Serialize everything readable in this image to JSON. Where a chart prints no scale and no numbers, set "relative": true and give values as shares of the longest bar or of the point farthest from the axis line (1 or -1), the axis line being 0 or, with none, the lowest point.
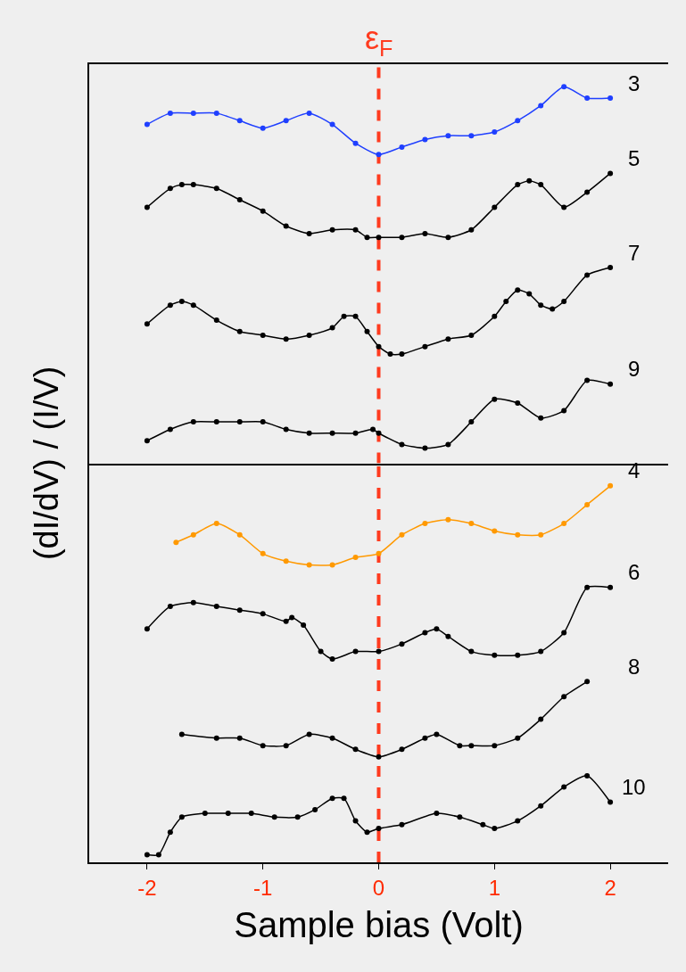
{
  "chart_data": [
    {
      "type": "line",
      "relative": true,
      "ylabel": "(dI/dV) / (I/V)",
      "xlim": [
        -2.5,
        2.5
      ],
      "xticks": [
        -2,
        -1,
        0,
        1,
        2
      ],
      "tick_labels": false,
      "marker": "circle",
      "line_style": "solid",
      "grid": false,
      "legend": false,
      "ref_lines": [
        {
          "axis": "x",
          "value": 0,
          "label": "ε$_{F}$",
          "color": "#ff3b1f",
          "line_style": "dashed"
        }
      ],
      "series": [
        {
          "name": "3",
          "color": "#1f3fff",
          "x": [
            -2,
            -1.8,
            -1.6,
            -1.4,
            -1.2,
            -1.0,
            -0.8,
            -0.6,
            -0.4,
            -0.2,
            0,
            0.2,
            0.4,
            0.6,
            0.8,
            1.0,
            1.2,
            1.4,
            1.6,
            1.8,
            2.0
          ],
          "values": [
            0.9,
            0.93,
            0.93,
            0.93,
            0.91,
            0.89,
            0.91,
            0.93,
            0.9,
            0.85,
            0.82,
            0.84,
            0.86,
            0.87,
            0.87,
            0.88,
            0.91,
            0.95,
            1.0,
            0.97,
            0.97
          ]
        },
        {
          "name": "5",
          "color": "#000000",
          "x": [
            -2,
            -1.8,
            -1.7,
            -1.6,
            -1.4,
            -1.2,
            -1.0,
            -0.8,
            -0.6,
            -0.4,
            -0.2,
            -0.1,
            0,
            0.2,
            0.4,
            0.6,
            0.8,
            1.0,
            1.2,
            1.3,
            1.4,
            1.6,
            1.8,
            2.0
          ],
          "values": [
            0.68,
            0.73,
            0.74,
            0.74,
            0.73,
            0.7,
            0.67,
            0.63,
            0.61,
            0.62,
            0.62,
            0.6,
            0.6,
            0.6,
            0.61,
            0.6,
            0.62,
            0.68,
            0.74,
            0.75,
            0.74,
            0.68,
            0.72,
            0.77
          ]
        },
        {
          "name": "7",
          "color": "#000000",
          "x": [
            -2,
            -1.8,
            -1.7,
            -1.6,
            -1.4,
            -1.2,
            -1.0,
            -0.8,
            -0.6,
            -0.4,
            -0.3,
            -0.2,
            -0.1,
            0,
            0.1,
            0.2,
            0.4,
            0.6,
            0.8,
            1.0,
            1.1,
            1.2,
            1.3,
            1.4,
            1.5,
            1.6,
            1.8,
            2.0
          ],
          "values": [
            0.37,
            0.42,
            0.43,
            0.42,
            0.38,
            0.35,
            0.34,
            0.33,
            0.34,
            0.36,
            0.39,
            0.39,
            0.35,
            0.31,
            0.29,
            0.29,
            0.31,
            0.33,
            0.34,
            0.39,
            0.43,
            0.46,
            0.45,
            0.42,
            0.41,
            0.43,
            0.5,
            0.52
          ]
        },
        {
          "name": "9",
          "color": "#000000",
          "x": [
            -2,
            -1.8,
            -1.6,
            -1.4,
            -1.2,
            -1.0,
            -0.8,
            -0.6,
            -0.4,
            -0.2,
            -0.05,
            0,
            0.2,
            0.4,
            0.6,
            0.8,
            1.0,
            1.2,
            1.4,
            1.6,
            1.8,
            2.0
          ],
          "values": [
            0.06,
            0.09,
            0.11,
            0.11,
            0.11,
            0.11,
            0.09,
            0.08,
            0.08,
            0.08,
            0.09,
            0.08,
            0.05,
            0.04,
            0.05,
            0.11,
            0.17,
            0.16,
            0.12,
            0.14,
            0.22,
            0.21
          ]
        }
      ]
    },
    {
      "type": "line",
      "relative": true,
      "xlabel": "Sample bias (Volt)",
      "xlim": [
        -2.5,
        2.5
      ],
      "xticks": [
        -2,
        -1,
        0,
        1,
        2
      ],
      "tick_labels": "x",
      "marker": "circle",
      "line_style": "solid",
      "grid": false,
      "legend": false,
      "ref_lines": [
        {
          "axis": "x",
          "value": 0,
          "color": "#ff3b1f",
          "line_style": "dashed"
        }
      ],
      "series": [
        {
          "name": "4",
          "color": "#ff9900",
          "x": [
            -1.75,
            -1.6,
            -1.4,
            -1.2,
            -1.0,
            -0.8,
            -0.6,
            -0.4,
            -0.2,
            0,
            0.2,
            0.4,
            0.6,
            0.8,
            1.0,
            1.2,
            1.4,
            1.6,
            1.8,
            2.0
          ],
          "values": [
            0.85,
            0.87,
            0.9,
            0.87,
            0.82,
            0.8,
            0.79,
            0.79,
            0.81,
            0.82,
            0.87,
            0.9,
            0.91,
            0.9,
            0.88,
            0.87,
            0.87,
            0.9,
            0.95,
            1.0
          ]
        },
        {
          "name": "6",
          "color": "#000000",
          "x": [
            -2,
            -1.8,
            -1.6,
            -1.4,
            -1.2,
            -1.0,
            -0.8,
            -0.75,
            -0.65,
            -0.5,
            -0.4,
            -0.2,
            0,
            0.2,
            0.4,
            0.5,
            0.6,
            0.8,
            1.0,
            1.2,
            1.4,
            1.6,
            1.8,
            2.0
          ],
          "values": [
            0.62,
            0.68,
            0.69,
            0.68,
            0.67,
            0.66,
            0.64,
            0.65,
            0.63,
            0.56,
            0.54,
            0.56,
            0.56,
            0.58,
            0.61,
            0.62,
            0.6,
            0.56,
            0.55,
            0.55,
            0.56,
            0.61,
            0.73,
            0.73
          ]
        },
        {
          "name": "8",
          "color": "#000000",
          "x": [
            -1.7,
            -1.4,
            -1.2,
            -1.0,
            -0.8,
            -0.6,
            -0.4,
            -0.2,
            0,
            0.2,
            0.4,
            0.5,
            0.7,
            0.8,
            1.0,
            1.2,
            1.4,
            1.6,
            1.8
          ],
          "values": [
            0.34,
            0.33,
            0.33,
            0.31,
            0.31,
            0.34,
            0.33,
            0.3,
            0.28,
            0.3,
            0.33,
            0.34,
            0.31,
            0.31,
            0.31,
            0.33,
            0.38,
            0.44,
            0.48
          ]
        },
        {
          "name": "10",
          "color": "#000000",
          "x": [
            -2,
            -1.9,
            -1.8,
            -1.7,
            -1.5,
            -1.3,
            -1.1,
            -0.9,
            -0.7,
            -0.55,
            -0.4,
            -0.3,
            -0.2,
            -0.1,
            0,
            0.2,
            0.5,
            0.7,
            0.9,
            1.0,
            1.2,
            1.4,
            1.6,
            1.8,
            2.0
          ],
          "values": [
            0.02,
            0.02,
            0.08,
            0.12,
            0.13,
            0.13,
            0.13,
            0.12,
            0.12,
            0.14,
            0.17,
            0.17,
            0.11,
            0.08,
            0.09,
            0.1,
            0.13,
            0.12,
            0.1,
            0.09,
            0.11,
            0.15,
            0.2,
            0.23,
            0.16
          ]
        }
      ]
    }
  ]
}
